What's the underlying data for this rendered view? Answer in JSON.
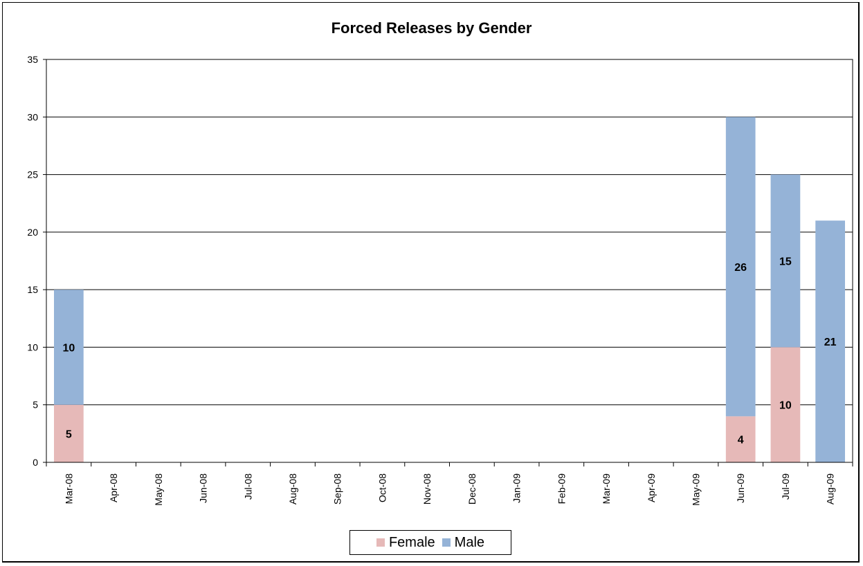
{
  "chart_data": {
    "type": "bar",
    "stacked": true,
    "title": "Forced Releases by Gender",
    "xlabel": "",
    "ylabel": "",
    "categories": [
      "Mar-08",
      "Apr-08",
      "May-08",
      "Jun-08",
      "Jul-08",
      "Aug-08",
      "Sep-08",
      "Oct-08",
      "Nov-08",
      "Dec-08",
      "Jan-09",
      "Feb-09",
      "Mar-09",
      "Apr-09",
      "May-09",
      "Jun-09",
      "Jul-09",
      "Aug-09"
    ],
    "series": [
      {
        "name": "Female",
        "color": "#e6b9b8",
        "values": [
          5,
          0,
          0,
          0,
          0,
          0,
          0,
          0,
          0,
          0,
          0,
          0,
          0,
          0,
          0,
          4,
          10,
          0
        ]
      },
      {
        "name": "Male",
        "color": "#95b3d7",
        "values": [
          10,
          0,
          0,
          0,
          0,
          0,
          0,
          0,
          0,
          0,
          0,
          0,
          0,
          0,
          0,
          26,
          15,
          21
        ]
      }
    ],
    "data_labels": {
      "Female": [
        5,
        null,
        null,
        null,
        null,
        null,
        null,
        null,
        null,
        null,
        null,
        null,
        null,
        null,
        null,
        4,
        10,
        null
      ],
      "Male": [
        10,
        null,
        null,
        null,
        null,
        null,
        null,
        null,
        null,
        null,
        null,
        null,
        null,
        null,
        null,
        26,
        15,
        21
      ]
    },
    "ylim": [
      0,
      35
    ],
    "yticks": [
      0,
      5,
      10,
      15,
      20,
      25,
      30,
      35
    ],
    "grid": true,
    "legend_position": "bottom"
  }
}
